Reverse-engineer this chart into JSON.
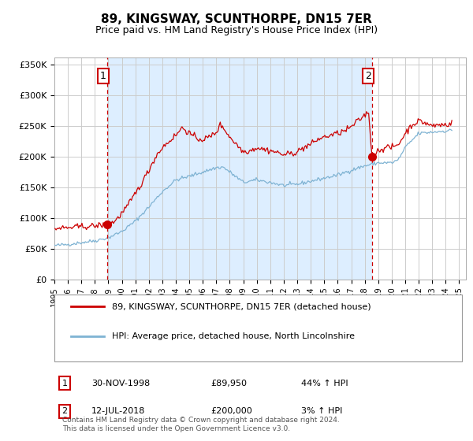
{
  "title": "89, KINGSWAY, SCUNTHORPE, DN15 7ER",
  "subtitle": "Price paid vs. HM Land Registry's House Price Index (HPI)",
  "title_fontsize": 11,
  "subtitle_fontsize": 9,
  "ylabel_ticks": [
    "£0",
    "£50K",
    "£100K",
    "£150K",
    "£200K",
    "£250K",
    "£300K",
    "£350K"
  ],
  "ytick_values": [
    0,
    50000,
    100000,
    150000,
    200000,
    250000,
    300000,
    350000
  ],
  "ylim": [
    0,
    362000
  ],
  "xlim_start": 1995.0,
  "xlim_end": 2025.5,
  "background_color": "#ffffff",
  "plot_bg_color": "#ffffff",
  "shade_color": "#ddeeff",
  "grid_color": "#cccccc",
  "red_color": "#cc0000",
  "blue_color": "#7fb3d3",
  "point1_x": 1998.92,
  "point1_y": 89950,
  "point2_x": 2018.54,
  "point2_y": 200000,
  "legend_label_red": "89, KINGSWAY, SCUNTHORPE, DN15 7ER (detached house)",
  "legend_label_blue": "HPI: Average price, detached house, North Lincolnshire",
  "table_row1_label": "1",
  "table_row1_date": "30-NOV-1998",
  "table_row1_price": "£89,950",
  "table_row1_hpi": "44% ↑ HPI",
  "table_row2_label": "2",
  "table_row2_date": "12-JUL-2018",
  "table_row2_price": "£200,000",
  "table_row2_hpi": "3% ↑ HPI",
  "footer": "Contains HM Land Registry data © Crown copyright and database right 2024.\nThis data is licensed under the Open Government Licence v3.0."
}
